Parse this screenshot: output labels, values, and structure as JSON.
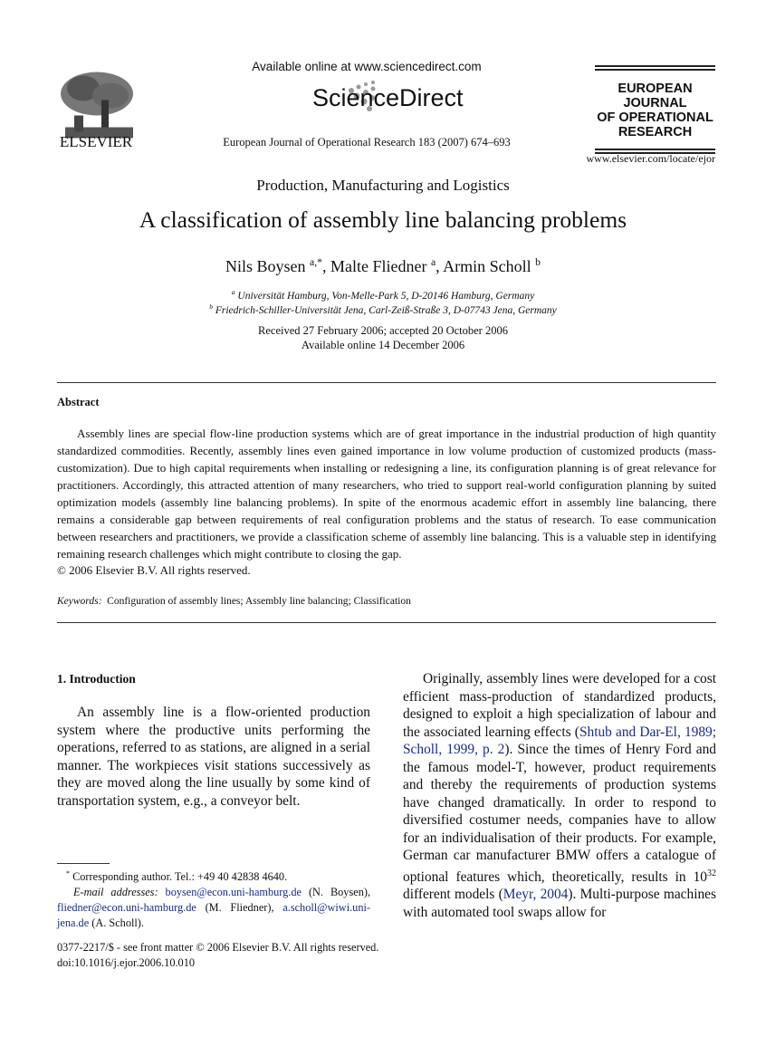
{
  "header": {
    "publisher": "ELSEVIER",
    "available_online": "Available online at www.sciencedirect.com",
    "sciencedirect": "ScienceDirect",
    "journal_citation": "European Journal of Operational Research 183 (2007) 674–693",
    "journal_logo_lines": [
      "EUROPEAN",
      "JOURNAL",
      "OF OPERATIONAL",
      "RESEARCH"
    ],
    "journal_url": "www.elsevier.com/locate/ejor"
  },
  "article": {
    "section": "Production, Manufacturing and Logistics",
    "title": "A classification of assembly line balancing problems",
    "authors": [
      {
        "name": "Nils Boysen",
        "sup": "a,*"
      },
      {
        "name": "Malte Fliedner",
        "sup": "a"
      },
      {
        "name": "Armin Scholl",
        "sup": "b"
      }
    ],
    "affiliations": [
      {
        "sup": "a",
        "text": "Universität Hamburg, Von-Melle-Park 5, D-20146 Hamburg, Germany"
      },
      {
        "sup": "b",
        "text": "Friedrich-Schiller-Universität Jena, Carl-Zeiß-Straße 3, D-07743 Jena, Germany"
      }
    ],
    "received": "Received 27 February 2006; accepted 20 October 2006",
    "available": "Available online 14 December 2006"
  },
  "abstract": {
    "heading": "Abstract",
    "text": "Assembly lines are special flow-line production systems which are of great importance in the industrial production of high quantity standardized commodities. Recently, assembly lines even gained importance in low volume production of customized products (mass-customization). Due to high capital requirements when installing or redesigning a line, its configuration planning is of great relevance for practitioners. Accordingly, this attracted attention of many researchers, who tried to support real-world configuration planning by suited optimization models (assembly line balancing problems). In spite of the enormous academic effort in assembly line balancing, there remains a considerable gap between requirements of real configuration problems and the status of research. To ease communication between researchers and practitioners, we provide a classification scheme of assembly line balancing. This is a valuable step in identifying remaining research challenges which might contribute to closing the gap.",
    "copyright": "© 2006 Elsevier B.V. All rights reserved.",
    "keywords_label": "Keywords:",
    "keywords": "Configuration of assembly lines; Assembly line balancing; Classification"
  },
  "intro": {
    "heading": "1. Introduction",
    "left_paragraph": "An assembly line is a flow-oriented production system where the productive units performing the operations, referred to as stations, are aligned in a serial manner. The workpieces visit stations successively as they are moved along the line usually by some kind of transportation system, e.g., a conveyor belt.",
    "right": {
      "p1": "Originally, assembly lines were developed for a cost efficient mass-production of standardized products, designed to exploit a high specialization of labour and the associated learning effects (",
      "link1": "Shtub and Dar-El, 1989; Scholl, 1999, p. 2",
      "p2": "). Since the times of Henry Ford and the famous model-T, however, product requirements and thereby the requirements of production systems have changed dramatically. In order to respond to diversified costumer needs, companies have to allow for an individualisation of their products. For example, German car manufacturer BMW offers a catalogue of optional features which, theoretically, results in 10",
      "exp": "32",
      "p3": " different models (",
      "link2": "Meyr, 2004",
      "p4": "). Multi-purpose machines with automated tool swaps allow for"
    }
  },
  "footnote": {
    "mark": "*",
    "corresponding": "Corresponding author. Tel.: +49 40 42838 4640.",
    "email_label": "E-mail addresses:",
    "email1": "boysen@econ.uni-hamburg.de",
    "who1": "(N. Boysen),",
    "email2": "fliedner@econ.uni-hamburg.de",
    "who2": "(M. Fliedner),",
    "email3": "a.scholl@wiwi.uni-jena.de",
    "who3": "(A. Scholl)."
  },
  "front_matter": {
    "issn": "0377-2217/$ - see front matter © 2006 Elsevier B.V. All rights reserved.",
    "doi": "doi:10.1016/j.ejor.2006.10.010"
  },
  "colors": {
    "link": "#1c2a8c",
    "text": "#111111"
  }
}
